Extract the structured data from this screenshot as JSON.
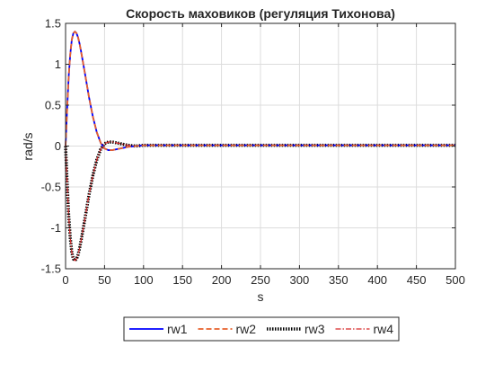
{
  "chart_data": {
    "type": "line",
    "title": "Скорость маховиков (регуляция Тихонова)",
    "xlabel": "s",
    "ylabel": "rad/s",
    "xlim": [
      0,
      500
    ],
    "ylim": [
      -1.5,
      1.5
    ],
    "xticks": [
      0,
      50,
      100,
      150,
      200,
      250,
      300,
      350,
      400,
      450,
      500
    ],
    "yticks": [
      -1.5,
      -1,
      -0.5,
      0,
      0.5,
      1,
      1.5
    ],
    "xtick_labels": [
      "0",
      "50",
      "100",
      "150",
      "200",
      "250",
      "300",
      "350",
      "400",
      "450",
      "500"
    ],
    "ytick_labels": [
      "-1.5",
      "-1",
      "-0.5",
      "0",
      "0.5",
      "1",
      "1.5"
    ],
    "grid": true,
    "legend_position": "bottom-outside",
    "series": [
      {
        "name": "rw1",
        "color": "#0000ff",
        "style": "solid",
        "x": [
          0,
          2,
          4,
          6,
          8,
          10,
          12,
          14,
          16,
          18,
          20,
          25,
          30,
          35,
          40,
          45,
          50,
          55,
          60,
          65,
          70,
          75,
          80,
          90,
          100,
          120,
          150,
          200,
          300,
          400,
          500
        ],
        "y": [
          0,
          0.45,
          0.85,
          1.12,
          1.3,
          1.38,
          1.4,
          1.38,
          1.33,
          1.25,
          1.15,
          0.88,
          0.6,
          0.36,
          0.17,
          0.04,
          -0.03,
          -0.05,
          -0.05,
          -0.04,
          -0.03,
          -0.02,
          -0.01,
          0,
          0.01,
          0.01,
          0.01,
          0.01,
          0.01,
          0.01,
          0.01
        ]
      },
      {
        "name": "rw2",
        "color": "#e8612c",
        "style": "dashed",
        "x": [
          0,
          2,
          4,
          6,
          8,
          10,
          12,
          14,
          16,
          18,
          20,
          25,
          30,
          35,
          40,
          45,
          50,
          55,
          60,
          65,
          70,
          75,
          80,
          90,
          100,
          120,
          150,
          200,
          300,
          400,
          500
        ],
        "y": [
          0,
          0.45,
          0.85,
          1.12,
          1.3,
          1.38,
          1.4,
          1.38,
          1.33,
          1.25,
          1.15,
          0.88,
          0.6,
          0.36,
          0.17,
          0.04,
          -0.03,
          -0.05,
          -0.05,
          -0.04,
          -0.03,
          -0.02,
          -0.01,
          0,
          0.01,
          0.01,
          0.01,
          0.01,
          0.01,
          0.01,
          0.01
        ]
      },
      {
        "name": "rw3",
        "color": "#000000",
        "style": "dotted",
        "x": [
          0,
          2,
          4,
          6,
          8,
          10,
          12,
          14,
          16,
          18,
          20,
          25,
          30,
          35,
          40,
          45,
          50,
          55,
          60,
          65,
          70,
          75,
          80,
          90,
          100,
          120,
          150,
          200,
          300,
          400,
          500
        ],
        "y": [
          0,
          -0.45,
          -0.85,
          -1.12,
          -1.3,
          -1.38,
          -1.4,
          -1.38,
          -1.33,
          -1.25,
          -1.15,
          -0.88,
          -0.6,
          -0.36,
          -0.17,
          -0.04,
          0.03,
          0.05,
          0.05,
          0.04,
          0.03,
          0.02,
          0.01,
          0,
          0.01,
          0.01,
          0.01,
          0.01,
          0.01,
          0.01,
          0.01
        ]
      },
      {
        "name": "rw4",
        "color": "#d62728",
        "style": "dashdot",
        "x": [
          0,
          2,
          4,
          6,
          8,
          10,
          12,
          14,
          16,
          18,
          20,
          25,
          30,
          35,
          40,
          45,
          50,
          55,
          60,
          65,
          70,
          75,
          80,
          90,
          100,
          120,
          150,
          200,
          300,
          400,
          500
        ],
        "y": [
          0,
          -0.45,
          -0.85,
          -1.12,
          -1.3,
          -1.38,
          -1.4,
          -1.38,
          -1.33,
          -1.25,
          -1.15,
          -0.88,
          -0.6,
          -0.36,
          -0.17,
          -0.04,
          0.03,
          0.05,
          0.05,
          0.04,
          0.03,
          0.02,
          0.01,
          0,
          0.01,
          0.01,
          0.01,
          0.01,
          0.01,
          0.01,
          0.01
        ]
      }
    ]
  }
}
